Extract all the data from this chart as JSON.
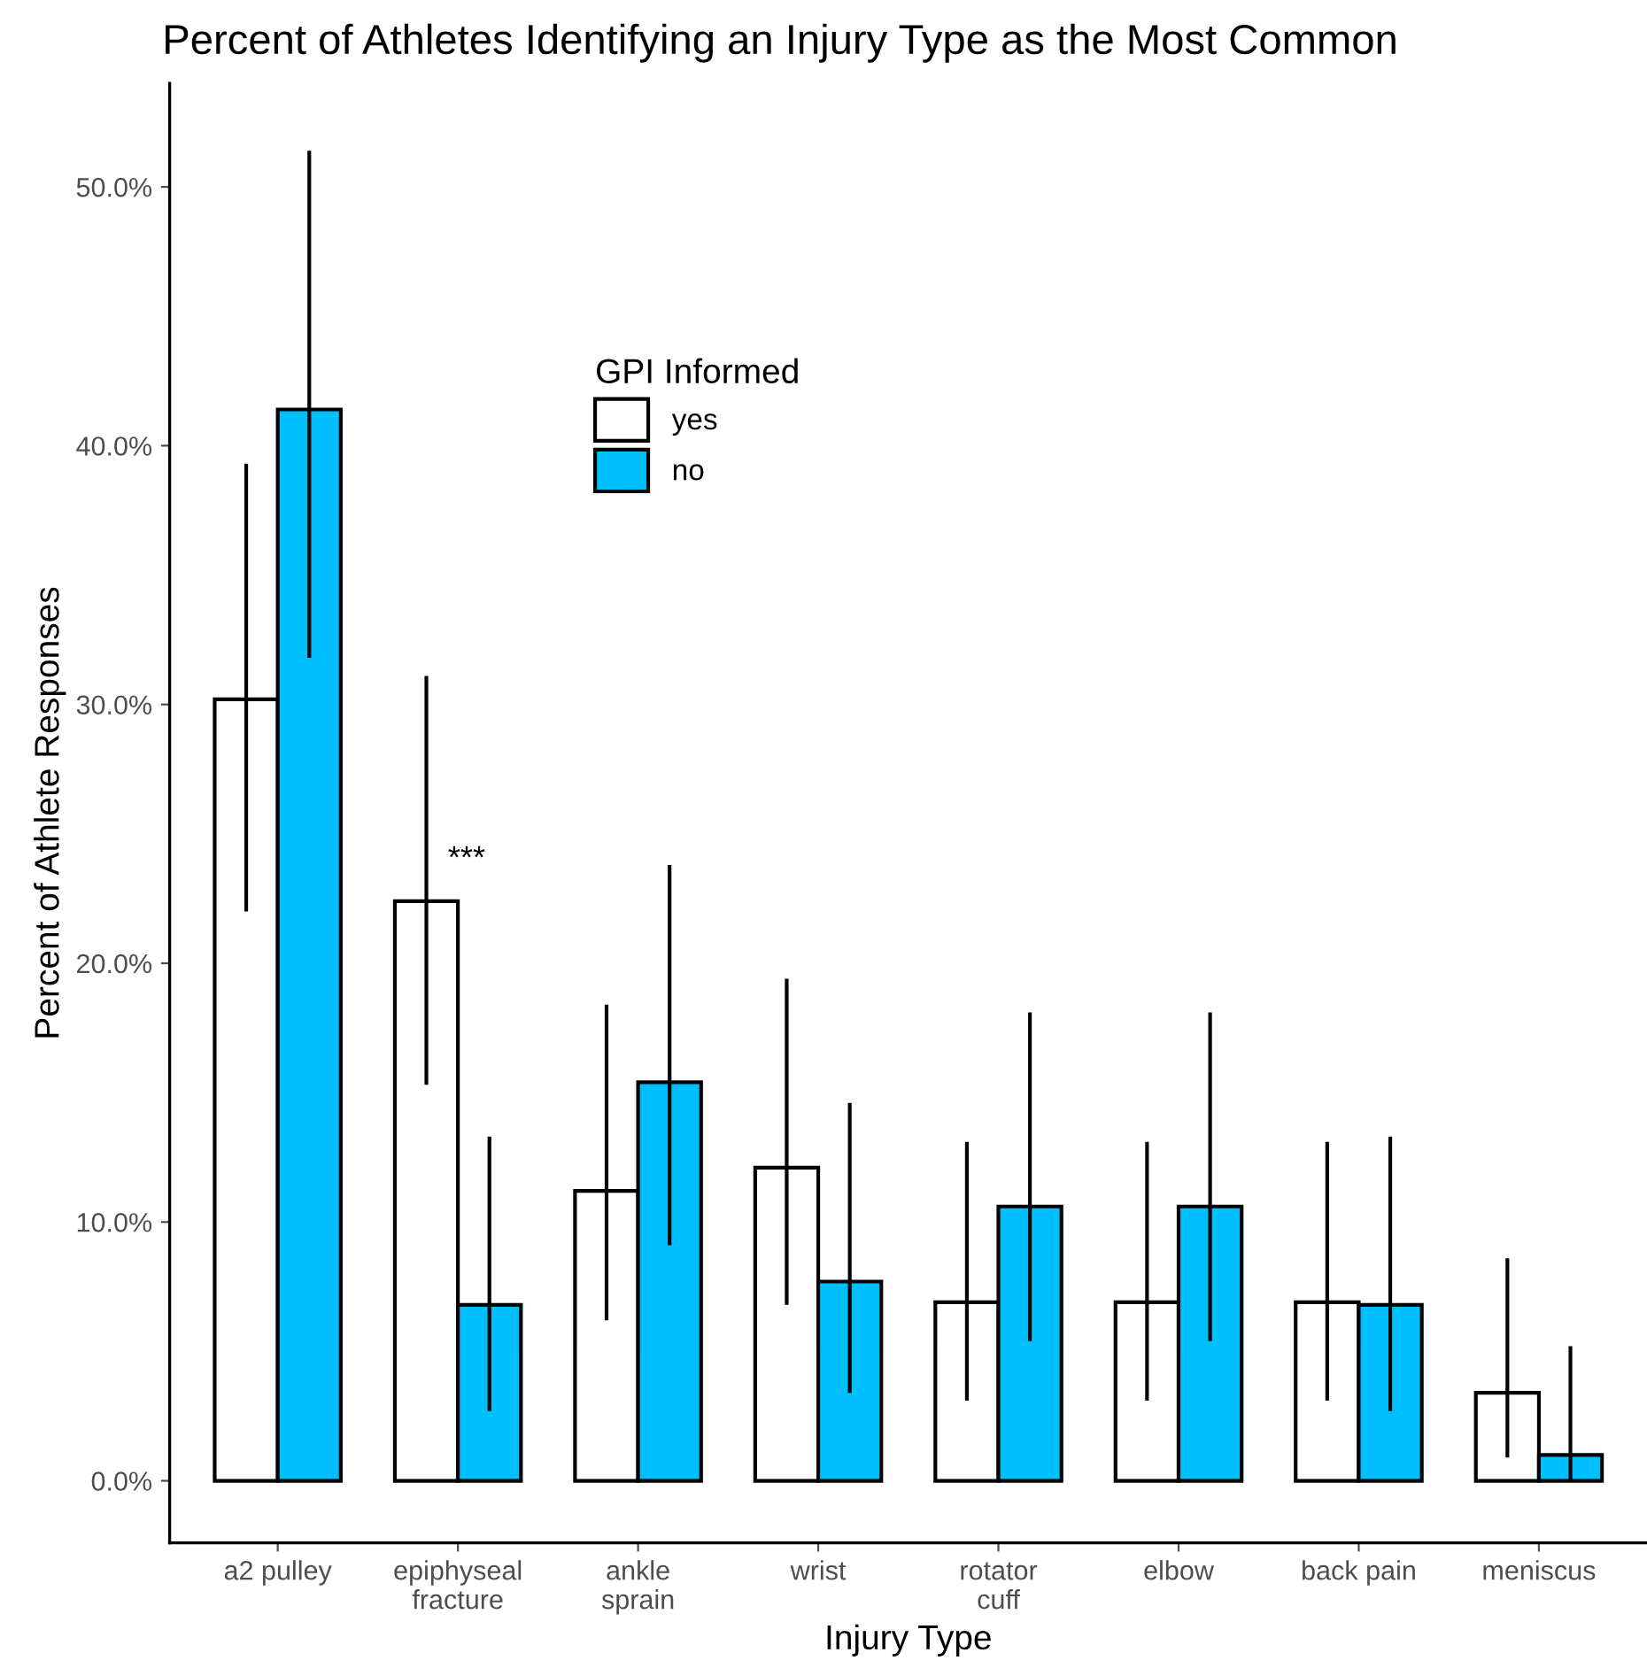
{
  "chart_data": {
    "type": "bar",
    "title": "Percent of Athletes Identifying an Injury Type as the Most Common",
    "xlabel": "Injury Type",
    "ylabel": "Percent of Athlete Responses",
    "legend_title": "GPI Informed",
    "categories": [
      "a2 pulley",
      "epiphyseal\nfracture",
      "ankle\nsprain",
      "wrist",
      "rotator\ncuff",
      "elbow",
      "back pain",
      "meniscus"
    ],
    "series": [
      {
        "name": "yes",
        "color": "#ffffff",
        "values": [
          30.2,
          22.4,
          11.2,
          12.1,
          6.9,
          6.9,
          6.9,
          3.4
        ],
        "errors": [
          [
            22.0,
            39.3
          ],
          [
            15.3,
            31.1
          ],
          [
            6.2,
            18.4
          ],
          [
            6.8,
            19.4
          ],
          [
            3.1,
            13.1
          ],
          [
            3.1,
            13.1
          ],
          [
            3.1,
            13.1
          ],
          [
            0.9,
            8.6
          ]
        ]
      },
      {
        "name": "no",
        "color": "#00bfff",
        "values": [
          41.4,
          6.8,
          15.4,
          7.7,
          10.6,
          10.6,
          6.8,
          1.0
        ],
        "errors": [
          [
            31.8,
            51.4
          ],
          [
            2.7,
            13.3
          ],
          [
            9.1,
            23.8
          ],
          [
            3.4,
            14.6
          ],
          [
            5.4,
            18.1
          ],
          [
            5.4,
            18.1
          ],
          [
            2.7,
            13.3
          ],
          [
            0.0,
            5.2
          ]
        ]
      }
    ],
    "ylim": [
      -2.4,
      54
    ],
    "yticks": [
      {
        "value": 0,
        "label": "0.0%"
      },
      {
        "value": 10,
        "label": "10.0%"
      },
      {
        "value": 20,
        "label": "20.0%"
      },
      {
        "value": 30,
        "label": "30.0%"
      },
      {
        "value": 40,
        "label": "40.0%"
      },
      {
        "value": 50,
        "label": "50.0%"
      }
    ],
    "annotations": [
      "***"
    ],
    "legend": "top left",
    "grid": false
  }
}
